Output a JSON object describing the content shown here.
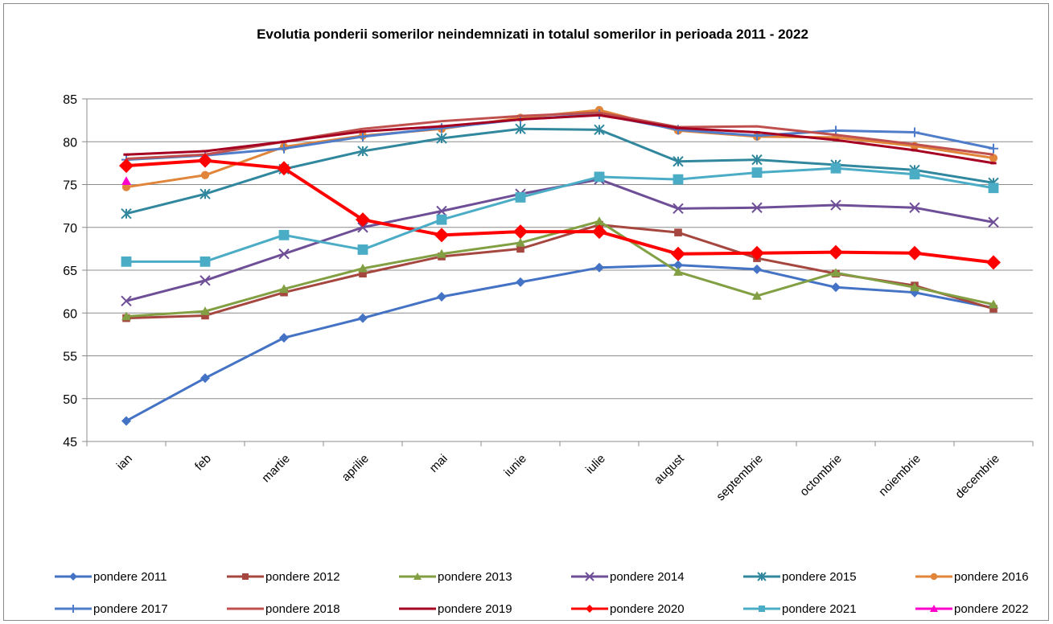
{
  "chart_data": {
    "type": "line",
    "title": "Evolutia ponderii somerilor neindemnizati in totalul somerilor in perioada 2011 -  2022",
    "xlabel": "",
    "ylabel": "",
    "ylim": [
      45,
      85
    ],
    "yticks": [
      45,
      50,
      55,
      60,
      65,
      70,
      75,
      80,
      85
    ],
    "grid": true,
    "legend_position": "bottom",
    "categories": [
      "ian",
      "feb",
      "martie",
      "aprilie",
      "mai",
      "iunie",
      "iulie",
      "august",
      "septembrie",
      "octombrie",
      "noiembrie",
      "decembrie"
    ],
    "series": [
      {
        "name": "pondere 2011",
        "color": "#4472C4",
        "marker": "diamond",
        "values": [
          47.4,
          52.4,
          57.1,
          59.4,
          61.9,
          63.6,
          65.3,
          65.6,
          65.1,
          63.0,
          62.4,
          60.6
        ]
      },
      {
        "name": "pondere 2012",
        "color": "#A5473F",
        "marker": "square",
        "values": [
          59.4,
          59.7,
          62.4,
          64.6,
          66.6,
          67.5,
          70.3,
          69.4,
          66.4,
          64.6,
          63.2,
          60.5
        ]
      },
      {
        "name": "pondere 2013",
        "color": "#82A043",
        "marker": "triangle",
        "values": [
          59.6,
          60.2,
          62.8,
          65.2,
          66.9,
          68.2,
          70.7,
          64.8,
          62.0,
          64.7,
          63.0,
          61.0
        ]
      },
      {
        "name": "pondere 2014",
        "color": "#6E4E96",
        "marker": "x",
        "values": [
          61.4,
          63.8,
          66.9,
          70.0,
          71.9,
          73.9,
          75.6,
          72.2,
          72.3,
          72.6,
          72.3,
          70.6
        ]
      },
      {
        "name": "pondere 2015",
        "color": "#31889E",
        "marker": "star",
        "values": [
          71.6,
          73.9,
          76.8,
          78.9,
          80.4,
          81.5,
          81.4,
          77.7,
          77.9,
          77.3,
          76.7,
          75.2
        ]
      },
      {
        "name": "pondere 2016",
        "color": "#E0853A",
        "marker": "circle",
        "values": [
          74.7,
          76.1,
          79.4,
          80.7,
          81.5,
          82.8,
          83.7,
          81.3,
          80.6,
          80.5,
          79.5,
          78.1
        ]
      },
      {
        "name": "pondere 2017",
        "color": "#4F7DC9",
        "marker": "plus",
        "values": [
          77.9,
          78.4,
          79.2,
          80.6,
          81.6,
          82.6,
          83.2,
          81.4,
          80.7,
          81.3,
          81.1,
          79.2
        ]
      },
      {
        "name": "pondere 2018",
        "color": "#C0504D",
        "marker": "none",
        "values": [
          78.0,
          78.5,
          80.0,
          81.5,
          82.4,
          83.0,
          83.4,
          81.7,
          81.8,
          80.8,
          79.7,
          78.5
        ]
      },
      {
        "name": "pondere 2019",
        "color": "#A50021",
        "marker": "dash",
        "values": [
          78.5,
          78.9,
          80.0,
          81.2,
          81.8,
          82.6,
          83.1,
          81.6,
          81.1,
          80.2,
          79.0,
          77.5
        ]
      },
      {
        "name": "pondere 2020",
        "color": "#FF0000",
        "marker": "diamond",
        "values": [
          77.2,
          77.8,
          76.9,
          70.9,
          69.1,
          69.5,
          69.5,
          66.9,
          67.0,
          67.1,
          67.0,
          65.9
        ]
      },
      {
        "name": "pondere 2021",
        "color": "#4BACC6",
        "marker": "square",
        "values": [
          66.0,
          66.0,
          69.1,
          67.4,
          70.9,
          73.5,
          75.9,
          75.6,
          76.4,
          76.9,
          76.2,
          74.6
        ]
      },
      {
        "name": "pondere 2022",
        "color": "#FF00CC",
        "marker": "triangle",
        "values": [
          75.4,
          null,
          null,
          null,
          null,
          null,
          null,
          null,
          null,
          null,
          null,
          null
        ]
      }
    ]
  }
}
